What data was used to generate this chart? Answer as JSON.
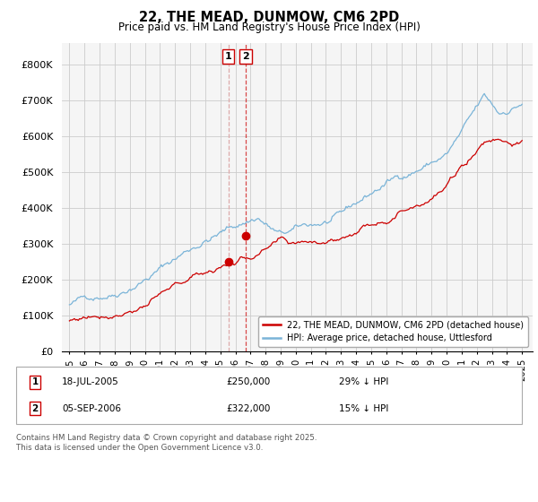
{
  "title": "22, THE MEAD, DUNMOW, CM6 2PD",
  "subtitle": "Price paid vs. HM Land Registry's House Price Index (HPI)",
  "legend_line1": "22, THE MEAD, DUNMOW, CM6 2PD (detached house)",
  "legend_line2": "HPI: Average price, detached house, Uttlesford",
  "transaction1_date": "18-JUL-2005",
  "transaction1_price": "£250,000",
  "transaction1_hpi": "29% ↓ HPI",
  "transaction2_date": "05-SEP-2006",
  "transaction2_price": "£322,000",
  "transaction2_hpi": "15% ↓ HPI",
  "sale1_x": 2005.54,
  "sale1_y": 250000,
  "sale2_x": 2006.68,
  "sale2_y": 322000,
  "hpi_color": "#7ab4d8",
  "price_color": "#cc0000",
  "background_color": "#f5f5f5",
  "grid_color": "#cccccc",
  "ylim_min": 0,
  "ylim_max": 860000,
  "xlim_min": 1994.5,
  "xlim_max": 2025.7,
  "footer": "Contains HM Land Registry data © Crown copyright and database right 2025.\nThis data is licensed under the Open Government Licence v3.0.",
  "yticks": [
    0,
    100000,
    200000,
    300000,
    400000,
    500000,
    600000,
    700000,
    800000
  ],
  "ytick_labels": [
    "£0",
    "£100K",
    "£200K",
    "£300K",
    "£400K",
    "£500K",
    "£600K",
    "£700K",
    "£800K"
  ],
  "xticks": [
    1995,
    1996,
    1997,
    1998,
    1999,
    2000,
    2001,
    2002,
    2003,
    2004,
    2005,
    2006,
    2007,
    2008,
    2009,
    2010,
    2011,
    2012,
    2013,
    2014,
    2015,
    2016,
    2017,
    2018,
    2019,
    2020,
    2021,
    2022,
    2023,
    2024,
    2025
  ]
}
